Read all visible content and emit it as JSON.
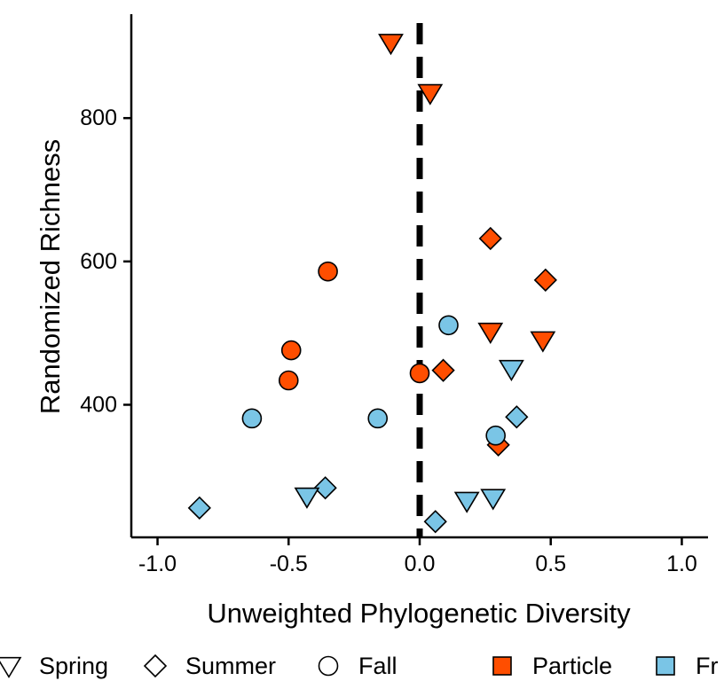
{
  "chart_data": {
    "type": "scatter",
    "xlabel": "Unweighted Phylogenetic Diversity",
    "ylabel": "Randomized Richness",
    "xlim": [
      -1.1,
      1.1
    ],
    "ylim": [
      215,
      945
    ],
    "x_ticks": [
      -1.0,
      -0.5,
      0.0,
      0.5,
      1.0
    ],
    "x_tick_labels": [
      "-1.0",
      "-0.5",
      "0.0",
      "0.5",
      "1.0"
    ],
    "y_ticks": [
      400,
      600,
      800
    ],
    "y_tick_labels": [
      "400",
      "600",
      "800"
    ],
    "reference_line": {
      "x": 0,
      "style": "dashed",
      "color": "#000000"
    },
    "grid": false,
    "legend_position": "bottom",
    "shape_legend": [
      {
        "key": "spring",
        "label": "Spring",
        "shape": "triangle-down"
      },
      {
        "key": "summer",
        "label": "Summer",
        "shape": "diamond"
      },
      {
        "key": "fall",
        "label": "Fall",
        "shape": "circle"
      }
    ],
    "fill_legend": [
      {
        "key": "particle",
        "label": "Particle",
        "color": "#FF4E00"
      },
      {
        "key": "free",
        "label": "Fr",
        "color": "#7AC5E6"
      }
    ],
    "points": [
      {
        "x": -0.11,
        "y": 905,
        "season": "spring",
        "fraction": "particle"
      },
      {
        "x": 0.04,
        "y": 835,
        "season": "spring",
        "fraction": "particle"
      },
      {
        "x": 0.27,
        "y": 632,
        "season": "summer",
        "fraction": "particle"
      },
      {
        "x": 0.48,
        "y": 574,
        "season": "summer",
        "fraction": "particle"
      },
      {
        "x": -0.35,
        "y": 586,
        "season": "fall",
        "fraction": "particle"
      },
      {
        "x": 0.27,
        "y": 502,
        "season": "spring",
        "fraction": "particle"
      },
      {
        "x": 0.47,
        "y": 490,
        "season": "spring",
        "fraction": "particle"
      },
      {
        "x": -0.49,
        "y": 476,
        "season": "fall",
        "fraction": "particle"
      },
      {
        "x": -0.5,
        "y": 434,
        "season": "fall",
        "fraction": "particle"
      },
      {
        "x": 0.0,
        "y": 444,
        "season": "fall",
        "fraction": "particle"
      },
      {
        "x": 0.09,
        "y": 448,
        "season": "summer",
        "fraction": "particle"
      },
      {
        "x": 0.3,
        "y": 344,
        "season": "summer",
        "fraction": "particle"
      },
      {
        "x": 0.11,
        "y": 511,
        "season": "fall",
        "fraction": "free"
      },
      {
        "x": 0.35,
        "y": 450,
        "season": "spring",
        "fraction": "free"
      },
      {
        "x": -0.64,
        "y": 381,
        "season": "fall",
        "fraction": "free"
      },
      {
        "x": -0.16,
        "y": 381,
        "season": "fall",
        "fraction": "free"
      },
      {
        "x": 0.37,
        "y": 383,
        "season": "summer",
        "fraction": "free"
      },
      {
        "x": 0.29,
        "y": 357,
        "season": "fall",
        "fraction": "free"
      },
      {
        "x": -0.36,
        "y": 284,
        "season": "summer",
        "fraction": "free"
      },
      {
        "x": -0.43,
        "y": 272,
        "season": "spring",
        "fraction": "free"
      },
      {
        "x": 0.18,
        "y": 266,
        "season": "spring",
        "fraction": "free"
      },
      {
        "x": 0.28,
        "y": 270,
        "season": "spring",
        "fraction": "free"
      },
      {
        "x": -0.84,
        "y": 256,
        "season": "summer",
        "fraction": "free"
      },
      {
        "x": 0.06,
        "y": 237,
        "season": "summer",
        "fraction": "free"
      }
    ]
  }
}
